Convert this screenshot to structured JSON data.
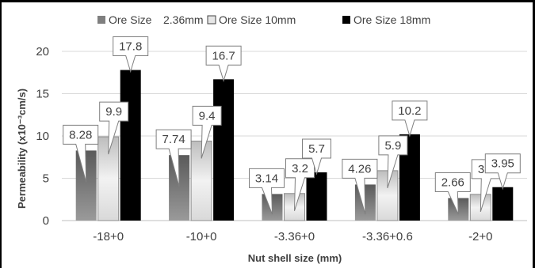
{
  "chart_data": {
    "type": "bar",
    "title": "",
    "xlabel": "Nut shell size (mm)",
    "ylabel": "Permeability (x10⁻³cm/s)",
    "ylim": [
      0,
      20
    ],
    "yticks": [
      "0",
      "5",
      "10",
      "15",
      "20"
    ],
    "categories": [
      "-18+0",
      "-10+0",
      "-3.36+0",
      "-3.36+0.6",
      "-2+0"
    ],
    "series": [
      {
        "name": "Ore Size 2.36mm",
        "values": [
          8.28,
          7.74,
          3.14,
          4.26,
          2.66
        ],
        "labels": [
          "8.28",
          "7.74",
          "3.14",
          "4.26",
          "2.66"
        ],
        "color": "#7f7f7f"
      },
      {
        "name": "Ore Size 10mm",
        "values": [
          9.9,
          9.4,
          3.2,
          5.9,
          3.1
        ],
        "labels": [
          "9.9",
          "9.4",
          "3.2",
          "5.9",
          "3.1"
        ],
        "color": "#e6e6e6"
      },
      {
        "name": "Ore Size 18mm",
        "values": [
          17.8,
          16.7,
          5.7,
          10.2,
          3.95
        ],
        "labels": [
          "17.8",
          "16.7",
          "5.7",
          "10.2",
          "3.95"
        ],
        "color": "#000000"
      }
    ],
    "legend_position": "top",
    "grid": true
  },
  "legend": {
    "items": [
      {
        "text": "Ore Size",
        "extra": "2.36mm"
      },
      {
        "text": "Ore Size 10mm",
        "extra": ""
      },
      {
        "text": "Ore Size 18mm",
        "extra": ""
      }
    ]
  }
}
